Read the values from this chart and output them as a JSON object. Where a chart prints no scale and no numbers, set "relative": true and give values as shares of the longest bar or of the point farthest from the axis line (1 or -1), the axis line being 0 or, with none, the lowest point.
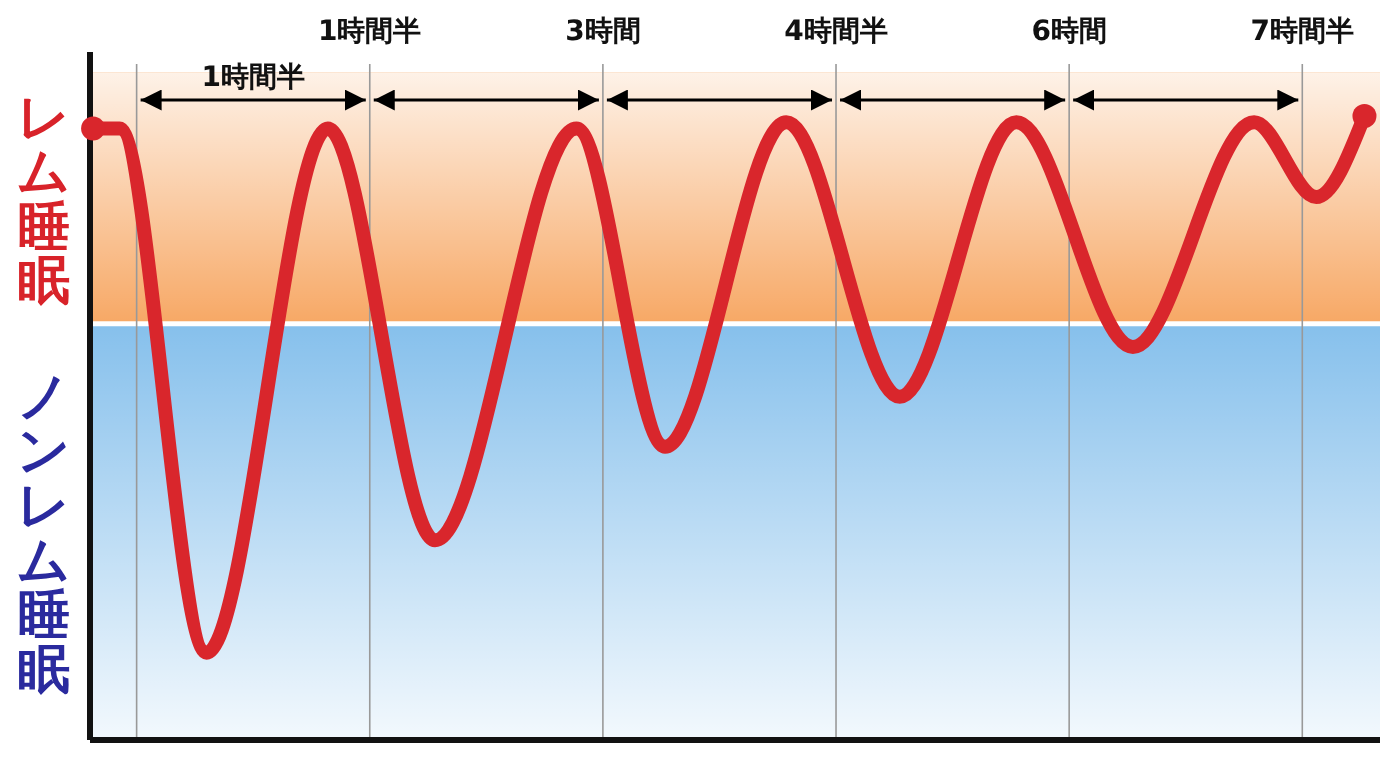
{
  "chart_data": {
    "type": "line",
    "relative": true,
    "x": [
      -0.28,
      -0.11,
      0.45,
      1.23,
      1.92,
      2.83,
      3.4,
      4.18,
      4.91,
      5.66,
      6.41,
      7.19,
      7.59,
      7.9
    ],
    "series": [
      {
        "color": "#d9262c",
        "values": [
          0.98,
          0.98,
          0.14,
          0.98,
          0.32,
          0.98,
          0.47,
          0.99,
          0.55,
          0.99,
          0.63,
          0.99,
          0.87,
          1
        ]
      }
    ],
    "marker": "none",
    "line_style": "solid",
    "grid": "x",
    "legend": false,
    "xlim": [
      -0.3,
      8
    ],
    "xticks": [
      {
        "value": 0,
        "label": null
      },
      {
        "value": 1.5,
        "label": "1時間半"
      },
      {
        "value": 3,
        "label": "3時間"
      },
      {
        "value": 4.5,
        "label": "4時間半"
      },
      {
        "value": 6,
        "label": "6時間"
      },
      {
        "value": 7.5,
        "label": "7時間半"
      }
    ],
    "bands": [
      {
        "axis": "y",
        "from": 0.667,
        "to": 1.07,
        "label": "レム睡眠",
        "color": "#f7a865"
      },
      {
        "axis": "y",
        "from": 0,
        "to": 0.667,
        "label": "ノンレム睡眠",
        "color": "#86c0ec"
      }
    ],
    "ref_lines": [
      {
        "axis": "y",
        "value": 0.667,
        "color": "#ffffff"
      }
    ],
    "annotations": [
      "1時間半"
    ]
  }
}
